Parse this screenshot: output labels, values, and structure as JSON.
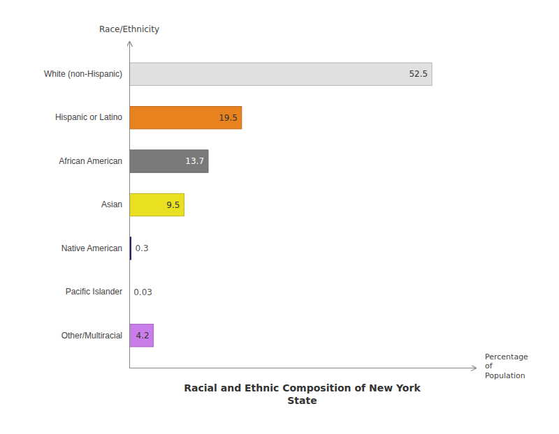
{
  "chart_data": {
    "type": "bar",
    "orientation": "horizontal",
    "title": "Racial and Ethnic Composition of New York\nState",
    "xlabel": "Percentage\nof\nPopulation",
    "ylabel": "Race/Ethnicity",
    "categories": [
      "White (non-Hispanic)",
      "Hispanic or Latino",
      "African American",
      "Asian",
      "Native American",
      "Pacific Islander",
      "Other/Multiracial"
    ],
    "values": [
      52.5,
      19.5,
      13.7,
      9.5,
      0.3,
      0.03,
      4.2
    ],
    "colors": [
      "#e0e0e0",
      "#e8821e",
      "#7a7a7a",
      "#e8e020",
      "#1a1a6e",
      "#1a1a6e",
      "#c97de8"
    ],
    "xlim": [
      0,
      60
    ],
    "grid": false,
    "data_labels": true,
    "tick_labels": "y"
  }
}
